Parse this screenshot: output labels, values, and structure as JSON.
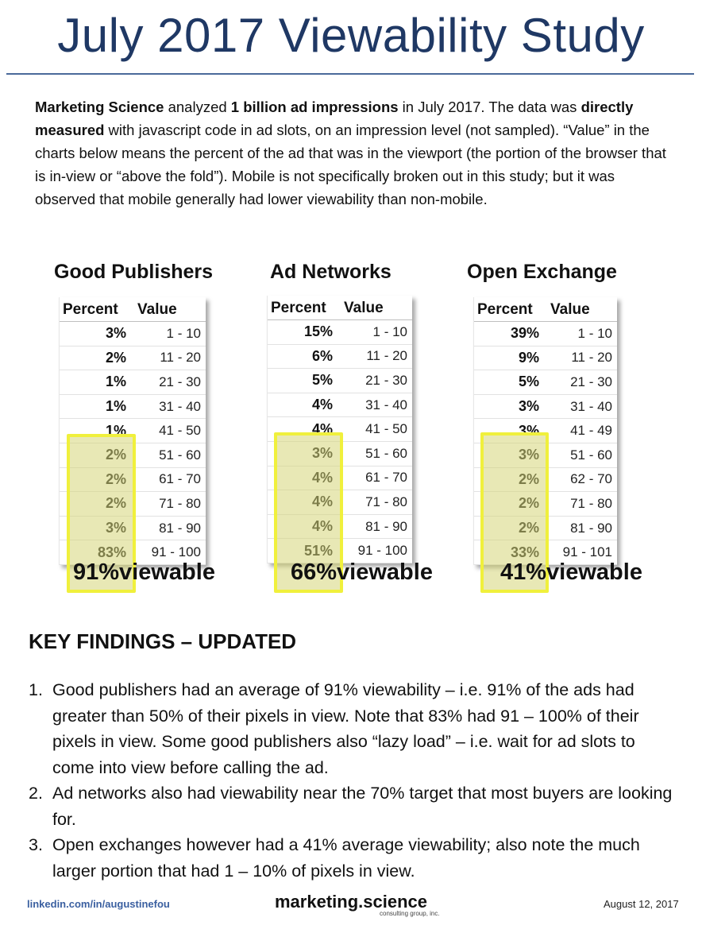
{
  "title": "July 2017 Viewability Study",
  "intro": {
    "b1": "Marketing Science",
    "t1": " analyzed ",
    "b2": "1 billion ad impressions",
    "t2": " in July 2017. The data was ",
    "b3": "directly measured",
    "t3": " with javascript code in ad slots, on an impression level (not sampled). “Value” in the charts below means the percent of the ad that was in the viewport (the portion of the browser that is in-view or “above the fold”). Mobile is not specifically broken out in this study; but it was observed that mobile generally had lower viewability than non-mobile."
  },
  "tables": [
    {
      "title": "Good Publishers",
      "col_percent": "Percent",
      "col_value": "Value",
      "rows": [
        {
          "percent": "3%",
          "value": "1 - 10"
        },
        {
          "percent": "2%",
          "value": "11 - 20"
        },
        {
          "percent": "1%",
          "value": "21 - 30"
        },
        {
          "percent": "1%",
          "value": "31 - 40"
        },
        {
          "percent": "1%",
          "value": "41 - 50"
        },
        {
          "percent": "2%",
          "value": "51 - 60"
        },
        {
          "percent": "2%",
          "value": "61 - 70"
        },
        {
          "percent": "2%",
          "value": "71 - 80"
        },
        {
          "percent": "3%",
          "value": "81 - 90"
        },
        {
          "percent": "83%",
          "value": "91 - 100"
        }
      ],
      "viewable_pct": "91%",
      "viewable_label": "viewable"
    },
    {
      "title": "Ad Networks",
      "col_percent": "Percent",
      "col_value": "Value",
      "rows": [
        {
          "percent": "15%",
          "value": "1 - 10"
        },
        {
          "percent": "6%",
          "value": "11 - 20"
        },
        {
          "percent": "5%",
          "value": "21 - 30"
        },
        {
          "percent": "4%",
          "value": "31 - 40"
        },
        {
          "percent": "4%",
          "value": "41 - 50"
        },
        {
          "percent": "3%",
          "value": "51 - 60"
        },
        {
          "percent": "4%",
          "value": "61 - 70"
        },
        {
          "percent": "4%",
          "value": "71 - 80"
        },
        {
          "percent": "4%",
          "value": "81 - 90"
        },
        {
          "percent": "51%",
          "value": "91 - 100"
        }
      ],
      "viewable_pct": "66%",
      "viewable_label": "viewable"
    },
    {
      "title": "Open Exchange",
      "col_percent": "Percent",
      "col_value": "Value",
      "rows": [
        {
          "percent": "39%",
          "value": "1 - 10"
        },
        {
          "percent": "9%",
          "value": "11 - 20"
        },
        {
          "percent": "5%",
          "value": "21 - 30"
        },
        {
          "percent": "3%",
          "value": "31 - 40"
        },
        {
          "percent": "3%",
          "value": "41 - 49"
        },
        {
          "percent": "3%",
          "value": "51 - 60"
        },
        {
          "percent": "2%",
          "value": "62 - 70"
        },
        {
          "percent": "2%",
          "value": "71 - 80"
        },
        {
          "percent": "2%",
          "value": "81 - 90"
        },
        {
          "percent": "33%",
          "value": "91 - 101"
        }
      ],
      "viewable_pct": "41%",
      "viewable_label": "viewable"
    }
  ],
  "key_findings": {
    "heading": "KEY FINDINGS – UPDATED",
    "items": [
      {
        "num": "1.",
        "text": "Good publishers had an average of 91% viewability – i.e. 91% of the ads had greater than 50% of their pixels in view. Note that 83% had 91 – 100% of their pixels in view. Some good publishers also “lazy load” – i.e. wait for ad slots to come into view before calling the ad."
      },
      {
        "num": "2.",
        "text": "Ad networks also had viewability near the 70% target that most buyers are looking for."
      },
      {
        "num": "3.",
        "text": "Open exchanges however had a 41% average viewability; also note the much larger portion that had 1 – 10% of pixels in view."
      }
    ]
  },
  "footer": {
    "left": "linkedin.com/in/augustinefou",
    "brand": "marketing.science",
    "brand_sub": "consulting group, inc.",
    "date": "August 12, 2017"
  }
}
